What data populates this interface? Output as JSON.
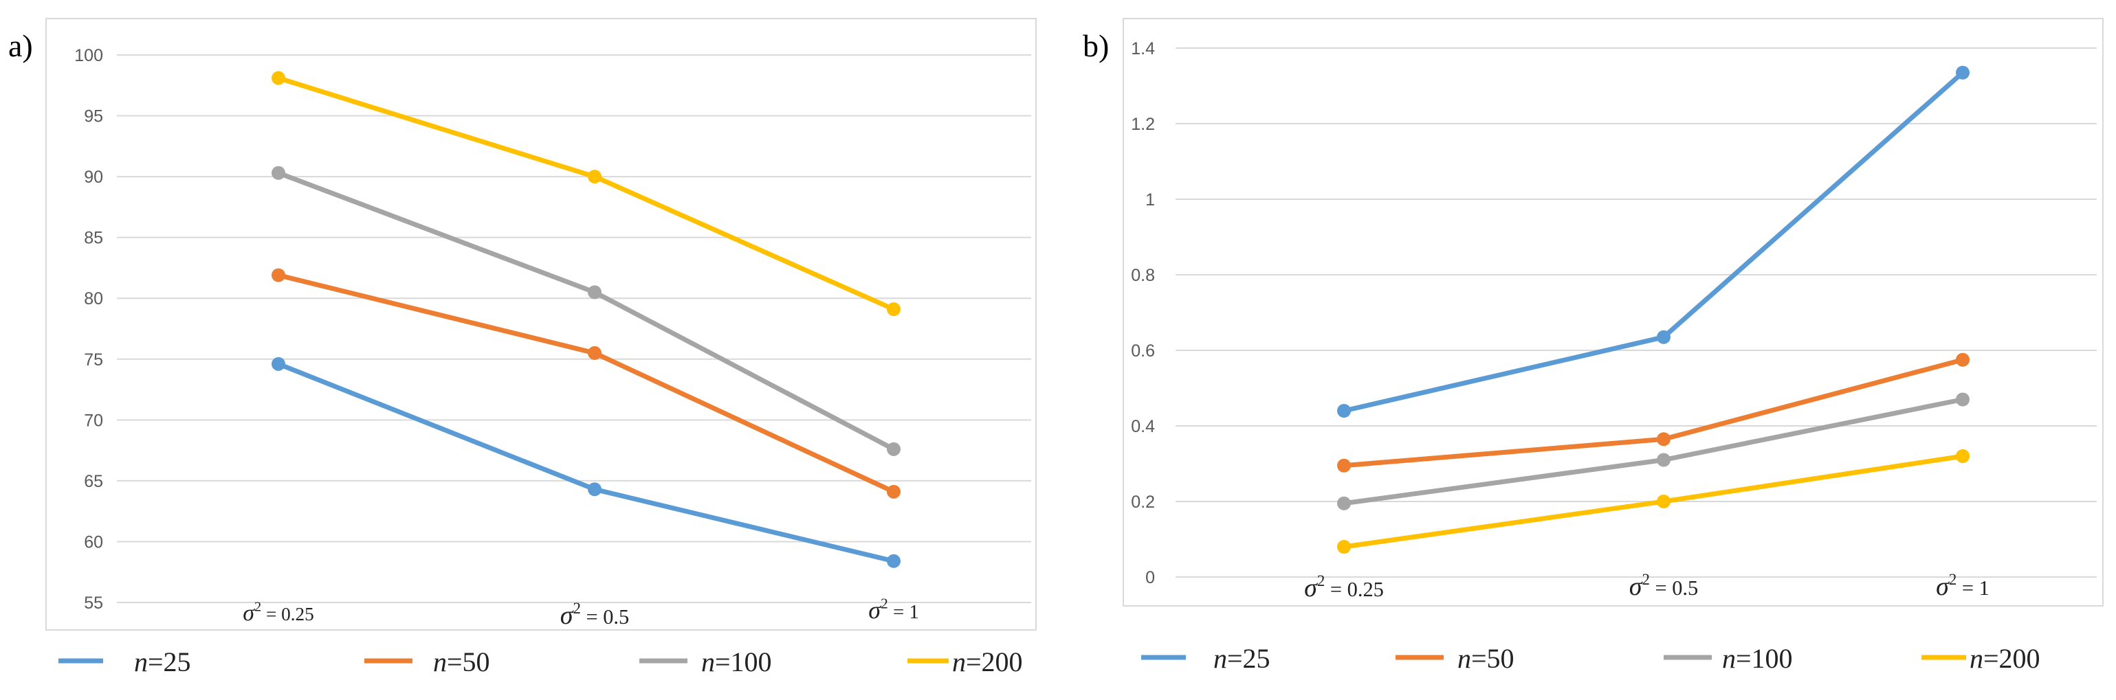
{
  "chart_data": [
    {
      "panel_label": "a)",
      "type": "line",
      "categories": [
        "σ² = 0.25",
        "σ² = 0.5",
        "σ² = 1"
      ],
      "category_parts": [
        {
          "base": "σ",
          "sup": "2",
          "rest": " = 0.25"
        },
        {
          "base": "σ",
          "sup": "2",
          "rest": " = 0.5"
        },
        {
          "base": "σ",
          "sup": "2",
          "rest": " = 1"
        }
      ],
      "yticks": [
        "55",
        "60",
        "65",
        "70",
        "75",
        "80",
        "85",
        "90",
        "95",
        "100"
      ],
      "ylim": [
        55,
        100
      ],
      "grid": true,
      "legend_position": "bottom",
      "series": [
        {
          "name": "n=25",
          "name_parts": {
            "italic": "n",
            "rest": "=25"
          },
          "color": "#5B9BD5",
          "values": [
            74.6,
            64.3,
            58.4
          ]
        },
        {
          "name": "n=50",
          "name_parts": {
            "italic": "n",
            "rest": "=50"
          },
          "color": "#ED7D31",
          "values": [
            81.9,
            75.5,
            64.1
          ]
        },
        {
          "name": "n=100",
          "name_parts": {
            "italic": "n",
            "rest": "=100"
          },
          "color": "#A5A5A5",
          "values": [
            90.3,
            80.5,
            67.6
          ]
        },
        {
          "name": "n=200",
          "name_parts": {
            "italic": "n",
            "rest": "=200"
          },
          "color": "#FFC000",
          "values": [
            98.1,
            90.0,
            79.1
          ]
        }
      ]
    },
    {
      "panel_label": "b)",
      "type": "line",
      "categories": [
        "σ² = 0.25",
        "σ² = 0.5",
        "σ² = 1"
      ],
      "category_parts": [
        {
          "base": "σ",
          "sup": "2",
          "rest": " = 0.25"
        },
        {
          "base": "σ",
          "sup": "2",
          "rest": " = 0.5"
        },
        {
          "base": "σ",
          "sup": "2",
          "rest": " = 1"
        }
      ],
      "yticks": [
        "0",
        "0.2",
        "0.4",
        "0.6",
        "0.8",
        "1",
        "1.2",
        "1.4"
      ],
      "ylim": [
        0,
        1.4
      ],
      "grid": true,
      "legend_position": "bottom",
      "series": [
        {
          "name": "n=25",
          "name_parts": {
            "italic": "n",
            "rest": "=25"
          },
          "color": "#5B9BD5",
          "values": [
            0.44,
            0.635,
            1.335
          ]
        },
        {
          "name": "n=50",
          "name_parts": {
            "italic": "n",
            "rest": "=50"
          },
          "color": "#ED7D31",
          "values": [
            0.295,
            0.365,
            0.575
          ]
        },
        {
          "name": "n=100",
          "name_parts": {
            "italic": "n",
            "rest": "=100"
          },
          "color": "#A5A5A5",
          "values": [
            0.195,
            0.31,
            0.47
          ]
        },
        {
          "name": "n=200",
          "name_parts": {
            "italic": "n",
            "rest": "=200"
          },
          "color": "#FFC000",
          "values": [
            0.08,
            0.2,
            0.32
          ]
        }
      ]
    }
  ]
}
